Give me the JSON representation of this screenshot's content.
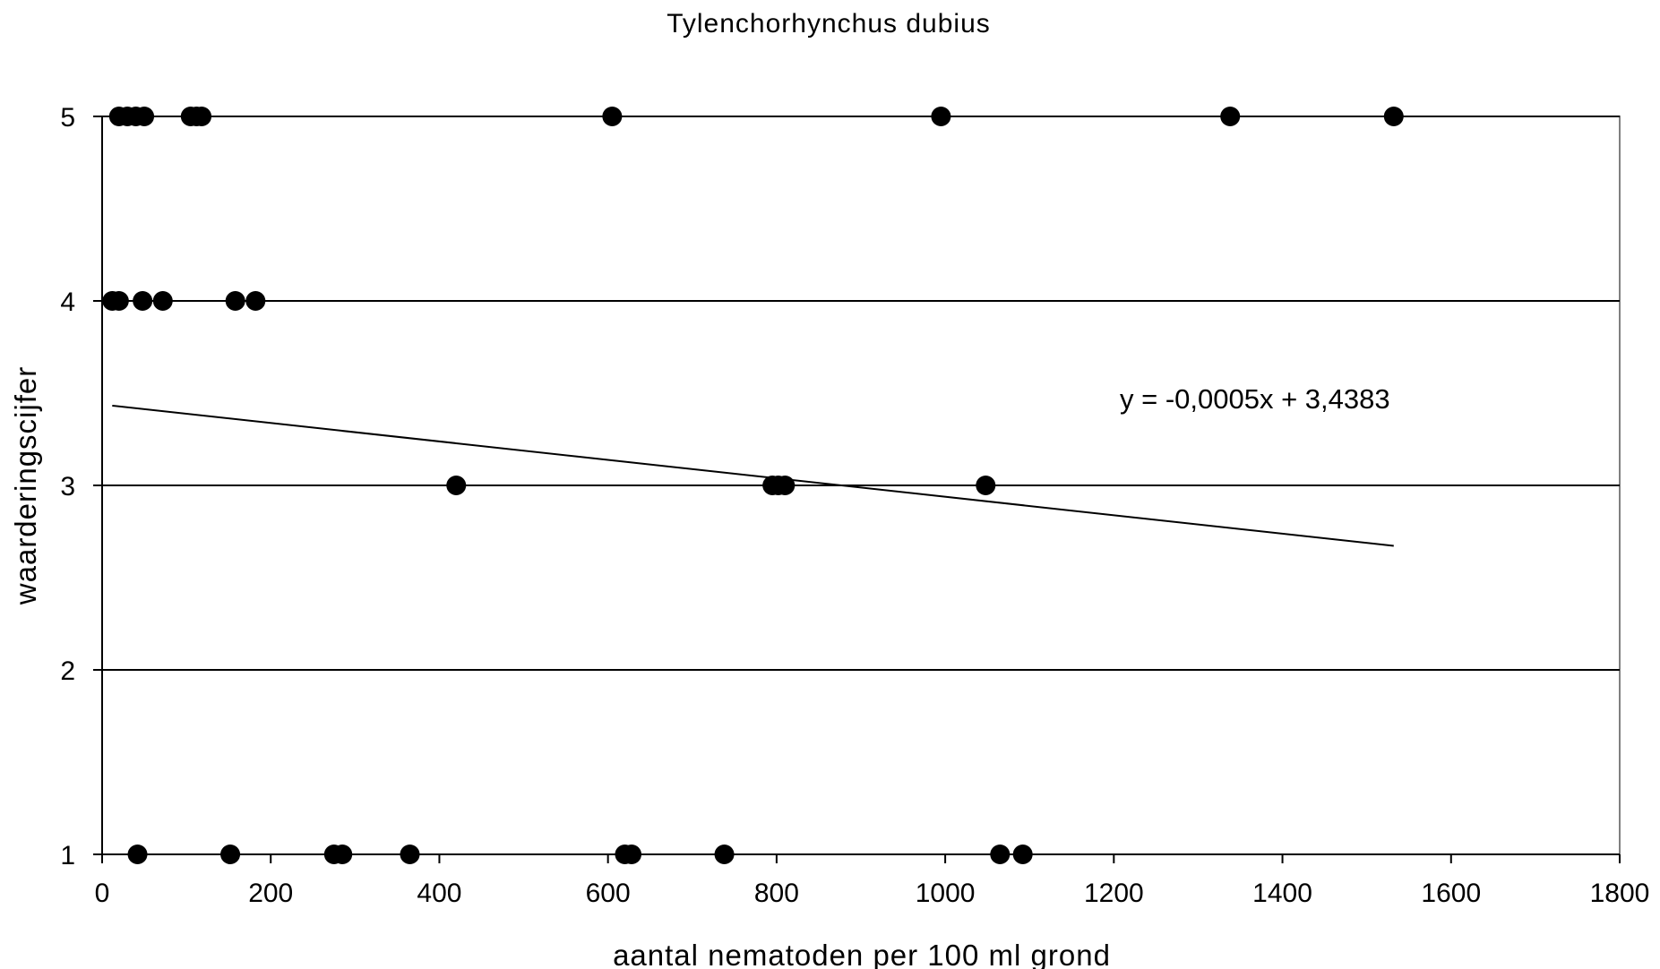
{
  "chart_data": {
    "type": "scatter",
    "title": "Tylenchorhynchus dubius",
    "xlabel": "aantal nematoden per 100 ml grond",
    "ylabel": "waarderingscijfer",
    "xlim": [
      0,
      1800
    ],
    "ylim": [
      1,
      5
    ],
    "xticks": [
      0,
      200,
      400,
      600,
      800,
      1000,
      1200,
      1400,
      1600,
      1800
    ],
    "yticks": [
      1,
      2,
      3,
      4,
      5
    ],
    "grid": {
      "horizontal": true,
      "vertical": false
    },
    "legend": "none",
    "marker_color": "#000000",
    "points": [
      {
        "x": 20,
        "y": 5
      },
      {
        "x": 30,
        "y": 5
      },
      {
        "x": 40,
        "y": 5
      },
      {
        "x": 50,
        "y": 5
      },
      {
        "x": 105,
        "y": 5
      },
      {
        "x": 112,
        "y": 5
      },
      {
        "x": 118,
        "y": 5
      },
      {
        "x": 605,
        "y": 5
      },
      {
        "x": 995,
        "y": 5
      },
      {
        "x": 1338,
        "y": 5
      },
      {
        "x": 1532,
        "y": 5
      },
      {
        "x": 12,
        "y": 4
      },
      {
        "x": 20,
        "y": 4
      },
      {
        "x": 48,
        "y": 4
      },
      {
        "x": 72,
        "y": 4
      },
      {
        "x": 158,
        "y": 4
      },
      {
        "x": 182,
        "y": 4
      },
      {
        "x": 420,
        "y": 3
      },
      {
        "x": 795,
        "y": 3
      },
      {
        "x": 802,
        "y": 3
      },
      {
        "x": 810,
        "y": 3
      },
      {
        "x": 1048,
        "y": 3
      },
      {
        "x": 42,
        "y": 1
      },
      {
        "x": 152,
        "y": 1
      },
      {
        "x": 275,
        "y": 1
      },
      {
        "x": 285,
        "y": 1
      },
      {
        "x": 365,
        "y": 1
      },
      {
        "x": 620,
        "y": 1
      },
      {
        "x": 628,
        "y": 1
      },
      {
        "x": 738,
        "y": 1
      },
      {
        "x": 1065,
        "y": 1
      },
      {
        "x": 1092,
        "y": 1
      }
    ],
    "trendline": {
      "type": "linear",
      "slope": -0.0005,
      "intercept": 3.4383,
      "x_range": [
        12,
        1532
      ],
      "equation_label": "y = -0,0005x + 3,4383",
      "label_position": "right-middle"
    }
  }
}
